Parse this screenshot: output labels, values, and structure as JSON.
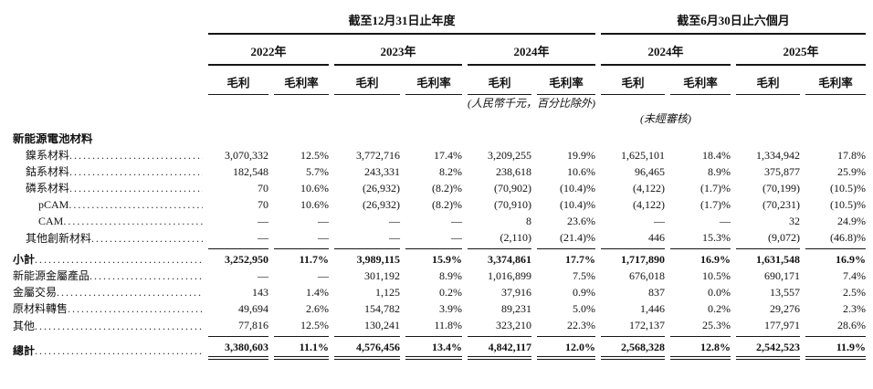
{
  "document": {
    "kind": "gross-profit-breakdown-table",
    "text_color": "#111111",
    "background_color": "#ffffff",
    "rule_color": "#161616"
  },
  "table": {
    "period_groups": [
      {
        "label": "截至12月31日止年度"
      },
      {
        "label": "截至6月30日止六個月"
      }
    ],
    "year_headers": [
      "2022年",
      "2023年",
      "2024年",
      "2024年",
      "2025年"
    ],
    "metric_headers": {
      "profit": "毛利",
      "margin": "毛利率"
    },
    "notes": {
      "currency_note": "(人民幣千元，百分比除外)",
      "unaudited_note": "(未經審核)"
    },
    "rows": [
      {
        "label": "新能源電池材料",
        "indent": 0,
        "style": "section",
        "dots": false,
        "values": [
          "",
          "",
          "",
          "",
          "",
          "",
          "",
          "",
          "",
          ""
        ]
      },
      {
        "label": "鎳系材料",
        "indent": 1,
        "style": "normal",
        "dots": true,
        "values": [
          "3,070,332",
          "12.5%",
          "3,772,716",
          "17.4%",
          "3,209,255",
          "19.9%",
          "1,625,101",
          "18.4%",
          "1,334,942",
          "17.8%"
        ]
      },
      {
        "label": "鈷系材料",
        "indent": 1,
        "style": "normal",
        "dots": true,
        "values": [
          "182,548",
          "5.7%",
          "243,331",
          "8.2%",
          "238,618",
          "10.6%",
          "96,465",
          "8.9%",
          "375,877",
          "25.9%"
        ]
      },
      {
        "label": "磷系材料",
        "indent": 1,
        "style": "normal",
        "dots": true,
        "values": [
          "70",
          "10.6%",
          "(26,932)",
          "(8.2)%",
          "(70,902)",
          "(10.4)%",
          "(4,122)",
          "(1.7)%",
          "(70,199)",
          "(10.5)%"
        ]
      },
      {
        "label": "pCAM",
        "indent": 2,
        "style": "normal",
        "dots": true,
        "values": [
          "70",
          "10.6%",
          "(26,932)",
          "(8.2)%",
          "(70,910)",
          "(10.4)%",
          "(4,122)",
          "(1.7)%",
          "(70,231)",
          "(10.5)%"
        ]
      },
      {
        "label": "CAM",
        "indent": 2,
        "style": "normal",
        "dots": true,
        "values": [
          "—",
          "—",
          "—",
          "—",
          "8",
          "23.6%",
          "—",
          "—",
          "32",
          "24.9%"
        ]
      },
      {
        "label": "其他創新材料 ",
        "indent": 1,
        "style": "normal",
        "dots": true,
        "rule_below": true,
        "values": [
          "—",
          "—",
          "—",
          "—",
          "(2,110)",
          "(21.4)%",
          "446",
          "15.3%",
          "(9,072)",
          "(46.8)%"
        ]
      },
      {
        "label": "小計",
        "indent": 0,
        "style": "subtotal",
        "dots": true,
        "values": [
          "3,252,950",
          "11.7%",
          "3,989,115",
          "15.9%",
          "3,374,861",
          "17.7%",
          "1,717,890",
          "16.9%",
          "1,631,548",
          "16.9%"
        ]
      },
      {
        "label": "新能源金屬產品 ",
        "indent": 0,
        "style": "normal",
        "dots": true,
        "values": [
          "—",
          "—",
          "301,192",
          "8.9%",
          "1,016,899",
          "7.5%",
          "676,018",
          "10.5%",
          "690,171",
          "7.4%"
        ]
      },
      {
        "label": "金屬交易",
        "indent": 0,
        "style": "normal",
        "dots": true,
        "values": [
          "143",
          "1.4%",
          "1,125",
          "0.2%",
          "37,916",
          "0.9%",
          "837",
          "0.0%",
          "13,557",
          "2.5%"
        ]
      },
      {
        "label": "原材料轉售",
        "indent": 0,
        "style": "normal",
        "dots": true,
        "values": [
          "49,694",
          "2.6%",
          "154,782",
          "3.9%",
          "89,231",
          "5.0%",
          "1,446",
          "0.2%",
          "29,276",
          "2.3%"
        ]
      },
      {
        "label": "其他",
        "indent": 0,
        "style": "normal",
        "dots": true,
        "rule_below": true,
        "values": [
          "77,816",
          "12.5%",
          "130,241",
          "11.8%",
          "323,210",
          "22.3%",
          "172,137",
          "25.3%",
          "177,971",
          "28.6%"
        ]
      },
      {
        "label": "總計",
        "indent": 0,
        "style": "total",
        "dots": true,
        "values": [
          "3,380,603",
          "11.1%",
          "4,576,456",
          "13.4%",
          "4,842,117",
          "12.0%",
          "2,568,328",
          "12.8%",
          "2,542,523",
          "11.9%"
        ]
      }
    ]
  }
}
